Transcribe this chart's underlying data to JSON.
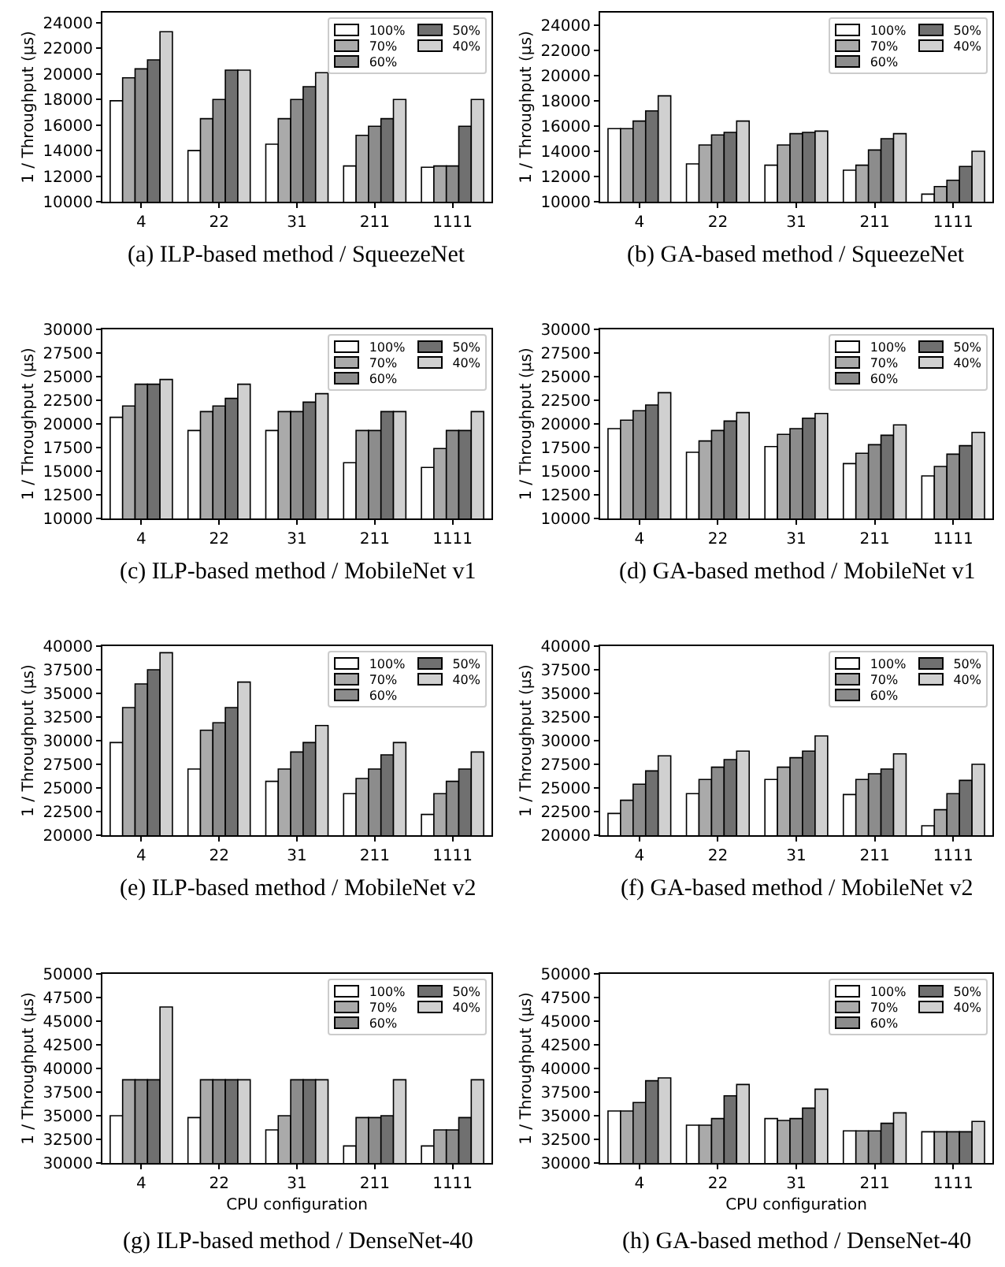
{
  "chart_data": [
    {
      "type": "bar",
      "title": "(a) ILP-based method / SqueezeNet",
      "ylabel": "1 / Throughput (μs)",
      "categories": [
        "4",
        "22",
        "31",
        "211",
        "1111"
      ],
      "legend": "top right",
      "ylim": [
        10000,
        24800
      ],
      "yticks": [
        10000,
        12000,
        14000,
        16000,
        18000,
        20000,
        22000,
        24000
      ],
      "series": [
        {
          "name": "100%",
          "color": "#ffffff",
          "values": [
            17900,
            14000,
            14500,
            12800,
            12700
          ]
        },
        {
          "name": "70%",
          "color": "#aaaaaa",
          "values": [
            19700,
            16500,
            16500,
            15200,
            12800
          ]
        },
        {
          "name": "60%",
          "color": "#8c8c8c",
          "values": [
            20400,
            18000,
            18000,
            15900,
            12800
          ]
        },
        {
          "name": "50%",
          "color": "#707070",
          "values": [
            21100,
            20300,
            19000,
            16500,
            15900
          ]
        },
        {
          "name": "40%",
          "color": "#d0d0d0",
          "values": [
            23300,
            20300,
            20100,
            18000,
            18000
          ]
        }
      ]
    },
    {
      "type": "bar",
      "title": "(b) GA-based method / SqueezeNet",
      "ylabel": "1 / Throughput (μs)",
      "categories": [
        "4",
        "22",
        "31",
        "211",
        "1111"
      ],
      "legend": "top right",
      "ylim": [
        10000,
        25000
      ],
      "yticks": [
        10000,
        12000,
        14000,
        16000,
        18000,
        20000,
        22000,
        24000
      ],
      "series": [
        {
          "name": "100%",
          "color": "#ffffff",
          "values": [
            15800,
            13000,
            12900,
            12500,
            10600
          ]
        },
        {
          "name": "70%",
          "color": "#aaaaaa",
          "values": [
            15800,
            14500,
            14500,
            12900,
            11200
          ]
        },
        {
          "name": "60%",
          "color": "#8c8c8c",
          "values": [
            16400,
            15300,
            15400,
            14100,
            11700
          ]
        },
        {
          "name": "50%",
          "color": "#707070",
          "values": [
            17200,
            15500,
            15500,
            15000,
            12800
          ]
        },
        {
          "name": "40%",
          "color": "#d0d0d0",
          "values": [
            18400,
            16400,
            15600,
            15400,
            14000
          ]
        }
      ]
    },
    {
      "type": "bar",
      "title": "(c) ILP-based method / MobileNet v1",
      "ylabel": "1 / Throughput (μs)",
      "categories": [
        "4",
        "22",
        "31",
        "211",
        "1111"
      ],
      "legend": "top right",
      "ylim": [
        10000,
        30000
      ],
      "yticks": [
        10000,
        12500,
        15000,
        17500,
        20000,
        22500,
        25000,
        27500,
        30000
      ],
      "series": [
        {
          "name": "100%",
          "color": "#ffffff",
          "values": [
            20700,
            19300,
            19300,
            15900,
            15400
          ]
        },
        {
          "name": "70%",
          "color": "#aaaaaa",
          "values": [
            21900,
            21300,
            21300,
            19300,
            17400
          ]
        },
        {
          "name": "60%",
          "color": "#8c8c8c",
          "values": [
            24200,
            21900,
            21300,
            19300,
            19300
          ]
        },
        {
          "name": "50%",
          "color": "#707070",
          "values": [
            24200,
            22700,
            22300,
            21300,
            19300
          ]
        },
        {
          "name": "40%",
          "color": "#d0d0d0",
          "values": [
            24700,
            24200,
            23200,
            21300,
            21300
          ]
        }
      ]
    },
    {
      "type": "bar",
      "title": "(d) GA-based method / MobileNet v1",
      "ylabel": "1 / Throughput (μs)",
      "categories": [
        "4",
        "22",
        "31",
        "211",
        "1111"
      ],
      "legend": "top right",
      "ylim": [
        10000,
        30000
      ],
      "yticks": [
        10000,
        12500,
        15000,
        17500,
        20000,
        22500,
        25000,
        27500,
        30000
      ],
      "series": [
        {
          "name": "100%",
          "color": "#ffffff",
          "values": [
            19500,
            17000,
            17600,
            15800,
            14500
          ]
        },
        {
          "name": "70%",
          "color": "#aaaaaa",
          "values": [
            20400,
            18200,
            18900,
            16900,
            15500
          ]
        },
        {
          "name": "60%",
          "color": "#8c8c8c",
          "values": [
            21400,
            19300,
            19500,
            17800,
            16800
          ]
        },
        {
          "name": "50%",
          "color": "#707070",
          "values": [
            22000,
            20300,
            20600,
            18800,
            17700
          ]
        },
        {
          "name": "40%",
          "color": "#d0d0d0",
          "values": [
            23300,
            21200,
            21100,
            19900,
            19100
          ]
        }
      ]
    },
    {
      "type": "bar",
      "title": "(e) ILP-based method / MobileNet v2",
      "ylabel": "1 / Throughput (μs)",
      "categories": [
        "4",
        "22",
        "31",
        "211",
        "1111"
      ],
      "legend": "top right",
      "ylim": [
        20000,
        40000
      ],
      "yticks": [
        20000,
        22500,
        25000,
        27500,
        30000,
        32500,
        35000,
        37500,
        40000
      ],
      "series": [
        {
          "name": "100%",
          "color": "#ffffff",
          "values": [
            29800,
            27000,
            25700,
            24400,
            22200
          ]
        },
        {
          "name": "70%",
          "color": "#aaaaaa",
          "values": [
            33500,
            31100,
            27000,
            26000,
            24400
          ]
        },
        {
          "name": "60%",
          "color": "#8c8c8c",
          "values": [
            36000,
            31900,
            28800,
            27000,
            25700
          ]
        },
        {
          "name": "50%",
          "color": "#707070",
          "values": [
            37500,
            33500,
            29800,
            28500,
            27000
          ]
        },
        {
          "name": "40%",
          "color": "#d0d0d0",
          "values": [
            39300,
            36200,
            31600,
            29800,
            28800
          ]
        }
      ]
    },
    {
      "type": "bar",
      "title": "(f) GA-based method / MobileNet v2",
      "ylabel": "1 / Throughput (μs)",
      "categories": [
        "4",
        "22",
        "31",
        "211",
        "1111"
      ],
      "legend": "top right",
      "ylim": [
        20000,
        40000
      ],
      "yticks": [
        20000,
        22500,
        25000,
        27500,
        30000,
        32500,
        35000,
        37500,
        40000
      ],
      "series": [
        {
          "name": "100%",
          "color": "#ffffff",
          "values": [
            22300,
            24400,
            25900,
            24300,
            21000
          ]
        },
        {
          "name": "70%",
          "color": "#aaaaaa",
          "values": [
            23700,
            25900,
            27200,
            25900,
            22700
          ]
        },
        {
          "name": "60%",
          "color": "#8c8c8c",
          "values": [
            25400,
            27200,
            28200,
            26500,
            24400
          ]
        },
        {
          "name": "50%",
          "color": "#707070",
          "values": [
            26800,
            28000,
            28900,
            27000,
            25800
          ]
        },
        {
          "name": "40%",
          "color": "#d0d0d0",
          "values": [
            28400,
            28900,
            30500,
            28600,
            27500
          ]
        }
      ]
    },
    {
      "type": "bar",
      "title": "(g) ILP-based method / DenseNet-40",
      "xlabel": "CPU configuration",
      "ylabel": "1 / Throughput (μs)",
      "categories": [
        "4",
        "22",
        "31",
        "211",
        "1111"
      ],
      "legend": "top right",
      "ylim": [
        30000,
        50000
      ],
      "yticks": [
        30000,
        32500,
        35000,
        37500,
        40000,
        42500,
        45000,
        47500,
        50000
      ],
      "series": [
        {
          "name": "100%",
          "color": "#ffffff",
          "values": [
            35000,
            34800,
            33500,
            31800,
            31800
          ]
        },
        {
          "name": "70%",
          "color": "#aaaaaa",
          "values": [
            38800,
            38800,
            35000,
            34800,
            33500
          ]
        },
        {
          "name": "60%",
          "color": "#8c8c8c",
          "values": [
            38800,
            38800,
            38800,
            34800,
            33500
          ]
        },
        {
          "name": "50%",
          "color": "#707070",
          "values": [
            38800,
            38800,
            38800,
            35000,
            34800
          ]
        },
        {
          "name": "40%",
          "color": "#d0d0d0",
          "values": [
            46500,
            38800,
            38800,
            38800,
            38800
          ]
        }
      ]
    },
    {
      "type": "bar",
      "title": "(h) GA-based method / DenseNet-40",
      "xlabel": "CPU configuration",
      "ylabel": "1 / Throughput (μs)",
      "categories": [
        "4",
        "22",
        "31",
        "211",
        "1111"
      ],
      "legend": "top right",
      "ylim": [
        30000,
        50000
      ],
      "yticks": [
        30000,
        32500,
        35000,
        37500,
        40000,
        42500,
        45000,
        47500,
        50000
      ],
      "series": [
        {
          "name": "100%",
          "color": "#ffffff",
          "values": [
            35500,
            34000,
            34700,
            33400,
            33300
          ]
        },
        {
          "name": "70%",
          "color": "#aaaaaa",
          "values": [
            35500,
            34000,
            34500,
            33400,
            33300
          ]
        },
        {
          "name": "60%",
          "color": "#8c8c8c",
          "values": [
            36400,
            34700,
            34700,
            33400,
            33300
          ]
        },
        {
          "name": "50%",
          "color": "#707070",
          "values": [
            38700,
            37100,
            35800,
            34200,
            33300
          ]
        },
        {
          "name": "40%",
          "color": "#d0d0d0",
          "values": [
            39000,
            38300,
            37800,
            35300,
            34400
          ]
        }
      ]
    }
  ]
}
